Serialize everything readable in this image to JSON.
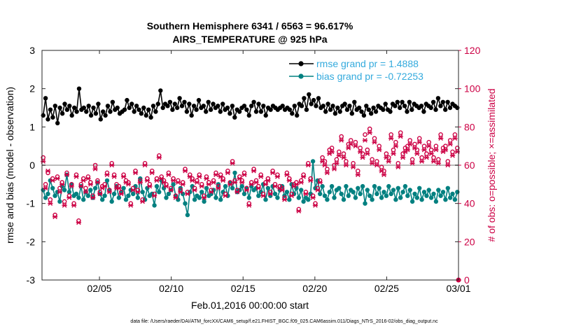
{
  "chart_data": {
    "type": "line",
    "title": "Southern Hemisphere 6341 / 6563 = 96.617%",
    "subtitle": "AIRS_TEMPERATURE @ 925 hPa",
    "xlabel": "Feb.01,2016 00:00:00 start",
    "ylabel": "rmse and bias (model - observation)",
    "y2label": "# of obs: o=possible; ×=assimilated",
    "footnote": "data file: /Users/raeder/DAI/ATM_forcXX/CAM6_setup/f.e21.FHIST_BGC.f09_025.CAM6assim.011/Diags_NTrS_2016-02/obs_diag_output.nc",
    "xlim": [
      1,
      30
    ],
    "ylim": [
      -3,
      3
    ],
    "y2lim": [
      0,
      120
    ],
    "x_ticks": [
      5,
      10,
      15,
      20,
      25,
      30
    ],
    "x_tick_labels": [
      "02/05",
      "02/10",
      "02/15",
      "02/20",
      "02/25",
      "03/01"
    ],
    "y_ticks": [
      -3,
      -2,
      -1,
      0,
      1,
      2,
      3
    ],
    "y_tick_labels": [
      "-3",
      "-2",
      "-1",
      "0",
      "1",
      "2",
      "3"
    ],
    "y2_ticks": [
      0,
      20,
      40,
      60,
      80,
      100,
      120
    ],
    "y2_tick_labels": [
      "0",
      "20",
      "40",
      "60",
      "80",
      "100",
      "120"
    ],
    "zero_line": 0,
    "legend_location": "top-right",
    "series": [
      {
        "name": "rmse grand pr = 1.4888",
        "color": "#000000",
        "axis": "left",
        "values": [
          1.3,
          1.75,
          1.2,
          1.45,
          1.25,
          1.55,
          1.1,
          1.5,
          1.35,
          1.6,
          1.45,
          1.55,
          1.3,
          1.5,
          1.4,
          2.0,
          1.45,
          1.5,
          1.4,
          1.55,
          1.3,
          1.5,
          1.35,
          1.6,
          1.2,
          1.4,
          1.3,
          1.55,
          1.4,
          1.65,
          1.45,
          1.5,
          1.35,
          1.4,
          1.45,
          1.7,
          1.5,
          1.6,
          1.4,
          1.55,
          1.45,
          1.35,
          1.5,
          1.3,
          1.45,
          1.25,
          1.55,
          1.4,
          1.6,
          1.95,
          1.5,
          1.6,
          1.55,
          1.65,
          1.45,
          1.6,
          1.5,
          1.75,
          1.55,
          1.65,
          1.4,
          1.6,
          1.3,
          1.55,
          1.45,
          1.7,
          1.5,
          1.55,
          1.4,
          1.65,
          1.45,
          1.6,
          1.5,
          1.55,
          1.4,
          1.6,
          1.45,
          1.5,
          1.35,
          1.55,
          1.25,
          1.45,
          1.4,
          1.5,
          1.55,
          1.45,
          1.3,
          1.55,
          1.65,
          1.4,
          1.6,
          1.4,
          1.55,
          1.3,
          1.5,
          1.45,
          1.55,
          1.5,
          1.45,
          1.5,
          1.55,
          1.45,
          1.5,
          1.45,
          1.35,
          1.55,
          1.3,
          1.6,
          1.55,
          1.75,
          1.45,
          1.85,
          1.6,
          1.7,
          1.55,
          1.75,
          1.5,
          1.55,
          1.4,
          1.6,
          1.45,
          1.55,
          1.35,
          1.5,
          1.4,
          1.55,
          1.6,
          1.45,
          1.55,
          1.35,
          1.65,
          1.45,
          1.5,
          1.4,
          1.3,
          1.55,
          1.45,
          1.35,
          1.5,
          1.4,
          1.55,
          1.5,
          1.45,
          1.6,
          1.45,
          1.4,
          1.6,
          1.55,
          1.65,
          1.5,
          1.65,
          1.55,
          1.4,
          1.65,
          1.45,
          1.6,
          1.55,
          1.5,
          1.55,
          1.4,
          1.6,
          1.55,
          1.5,
          1.65,
          1.45,
          1.75,
          1.55,
          1.65,
          1.45,
          1.65,
          1.5,
          1.6,
          1.55,
          1.5
        ]
      },
      {
        "name": "bias grand pr = -0.72253",
        "color": "#008080",
        "axis": "left",
        "values": [
          -0.65,
          -0.85,
          -0.75,
          -0.4,
          -0.6,
          -0.8,
          -0.7,
          -0.95,
          -0.55,
          -0.65,
          -0.25,
          -0.7,
          -0.5,
          -0.8,
          -0.75,
          -0.85,
          -0.55,
          -0.9,
          -0.7,
          -0.8,
          -0.65,
          -0.85,
          -0.6,
          -0.45,
          -0.75,
          -0.9,
          -0.8,
          -0.4,
          -0.65,
          -0.95,
          -0.75,
          -0.55,
          -0.85,
          -0.7,
          -0.6,
          -0.9,
          -0.8,
          -0.65,
          -0.75,
          -0.55,
          -0.85,
          -0.35,
          -0.7,
          -0.9,
          -0.6,
          -0.8,
          -0.75,
          -1.05,
          -0.55,
          -0.7,
          -0.4,
          -0.6,
          -0.85,
          -0.75,
          -0.65,
          -0.5,
          -0.8,
          -0.9,
          -0.6,
          -0.75,
          -1.0,
          -1.3,
          -0.7,
          -0.55,
          -0.9,
          -0.8,
          -0.85,
          -0.7,
          -0.95,
          -0.6,
          -0.8,
          -0.75,
          -0.65,
          -0.85,
          -0.5,
          -0.9,
          -0.7,
          -0.55,
          -0.8,
          -0.45,
          -0.6,
          -0.2,
          -0.7,
          -0.65,
          -0.55,
          -0.75,
          -0.6,
          -0.85,
          -0.55,
          -0.65,
          -0.6,
          -0.8,
          -0.7,
          -0.5,
          -0.9,
          -0.6,
          -0.8,
          -0.55,
          -0.75,
          -0.85,
          -0.65,
          -0.55,
          -0.8,
          -0.7,
          -0.9,
          -0.5,
          -0.75,
          -0.6,
          -0.85,
          -0.65,
          -0.95,
          -0.85,
          -0.9,
          -0.75,
          0.1,
          -0.6,
          -0.4,
          -0.75,
          -0.55,
          -0.8,
          -0.9,
          -0.7,
          -0.55,
          -0.85,
          -0.65,
          -0.6,
          -0.75,
          -0.9,
          -0.55,
          -0.8,
          -0.65,
          -0.7,
          -0.85,
          -0.6,
          -0.75,
          -0.55,
          -1.0,
          -0.65,
          -0.8,
          -0.9,
          -0.55,
          -0.75,
          -0.6,
          -0.85,
          -0.7,
          -0.8,
          -0.55,
          -0.75,
          -0.65,
          -0.9,
          -0.6,
          -0.85,
          -0.7,
          -0.55,
          -0.8,
          -0.65,
          -0.95,
          -0.75,
          -0.85,
          -0.6,
          -0.9,
          -0.7,
          -0.8,
          -0.65,
          -0.85,
          -0.75,
          -0.95,
          -0.65,
          -0.8,
          -0.7,
          -0.9,
          -0.6,
          -0.85,
          -0.75,
          -0.9,
          -0.7
        ]
      },
      {
        "name": "obs possible",
        "color": "#cc0044",
        "axis": "right",
        "marker": "o",
        "values": [
          64,
          50,
          56,
          42,
          53,
          34,
          54,
          48,
          51,
          41,
          56,
          44,
          50,
          40,
          55,
          31,
          50,
          53,
          48,
          54,
          51,
          44,
          60,
          52,
          46,
          49,
          50,
          56,
          47,
          61,
          55,
          50,
          49,
          46,
          55,
          52,
          51,
          40,
          48,
          57,
          47,
          52,
          42,
          61,
          53,
          50,
          57,
          45,
          53,
          65,
          54,
          52,
          50,
          56,
          48,
          53,
          44,
          52,
          47,
          51,
          58,
          46,
          55,
          53,
          48,
          52,
          55,
          50,
          44,
          54,
          51,
          47,
          52,
          56,
          49,
          55,
          53,
          45,
          57,
          51,
          62,
          52,
          47,
          54,
          52,
          56,
          48,
          40,
          51,
          58,
          52,
          49,
          55,
          45,
          51,
          53,
          46,
          57,
          50,
          55,
          49,
          48,
          43,
          56,
          53,
          45,
          50,
          51,
          37,
          52,
          55,
          46,
          61,
          53,
          44,
          40,
          48,
          52,
          64,
          62,
          58,
          68,
          69,
          60,
          63,
          67,
          75,
          66,
          62,
          71,
          73,
          61,
          72,
          57,
          69,
          66,
          76,
          68,
          79,
          63,
          74,
          62,
          70,
          59,
          57,
          66,
          64,
          76,
          68,
          72,
          61,
          77,
          66,
          69,
          70,
          73,
          63,
          71,
          68,
          74,
          64,
          70,
          66,
          72,
          68,
          64,
          70,
          63,
          76,
          69,
          70,
          62,
          73,
          67,
          76,
          69
        ]
      },
      {
        "name": "obs assimilated",
        "color": "#cc0044",
        "axis": "right",
        "marker": "x",
        "values": [
          62,
          48,
          57,
          40,
          52,
          33,
          53,
          46,
          50,
          39,
          55,
          43,
          49,
          39,
          54,
          30,
          49,
          52,
          46,
          53,
          50,
          43,
          58,
          51,
          45,
          48,
          49,
          55,
          46,
          60,
          54,
          48,
          48,
          45,
          54,
          51,
          50,
          39,
          47,
          56,
          46,
          51,
          41,
          60,
          52,
          49,
          56,
          44,
          52,
          64,
          53,
          51,
          49,
          55,
          47,
          52,
          43,
          51,
          46,
          50,
          57,
          45,
          54,
          52,
          47,
          51,
          54,
          49,
          43,
          53,
          50,
          46,
          51,
          55,
          48,
          54,
          52,
          44,
          56,
          50,
          61,
          51,
          46,
          53,
          51,
          55,
          47,
          39,
          50,
          57,
          51,
          48,
          54,
          44,
          50,
          52,
          45,
          56,
          49,
          54,
          48,
          47,
          42,
          55,
          52,
          44,
          49,
          50,
          36,
          51,
          54,
          45,
          60,
          52,
          43,
          39,
          47,
          51,
          62,
          60,
          56,
          66,
          67,
          58,
          61,
          65,
          73,
          64,
          60,
          69,
          71,
          59,
          70,
          55,
          67,
          64,
          73,
          66,
          77,
          61,
          72,
          60,
          68,
          57,
          55,
          64,
          62,
          74,
          66,
          70,
          59,
          75,
          64,
          67,
          68,
          71,
          61,
          69,
          66,
          72,
          62,
          68,
          64,
          70,
          66,
          62,
          68,
          61,
          74,
          67,
          68,
          60,
          71,
          65,
          74,
          67
        ]
      }
    ]
  }
}
